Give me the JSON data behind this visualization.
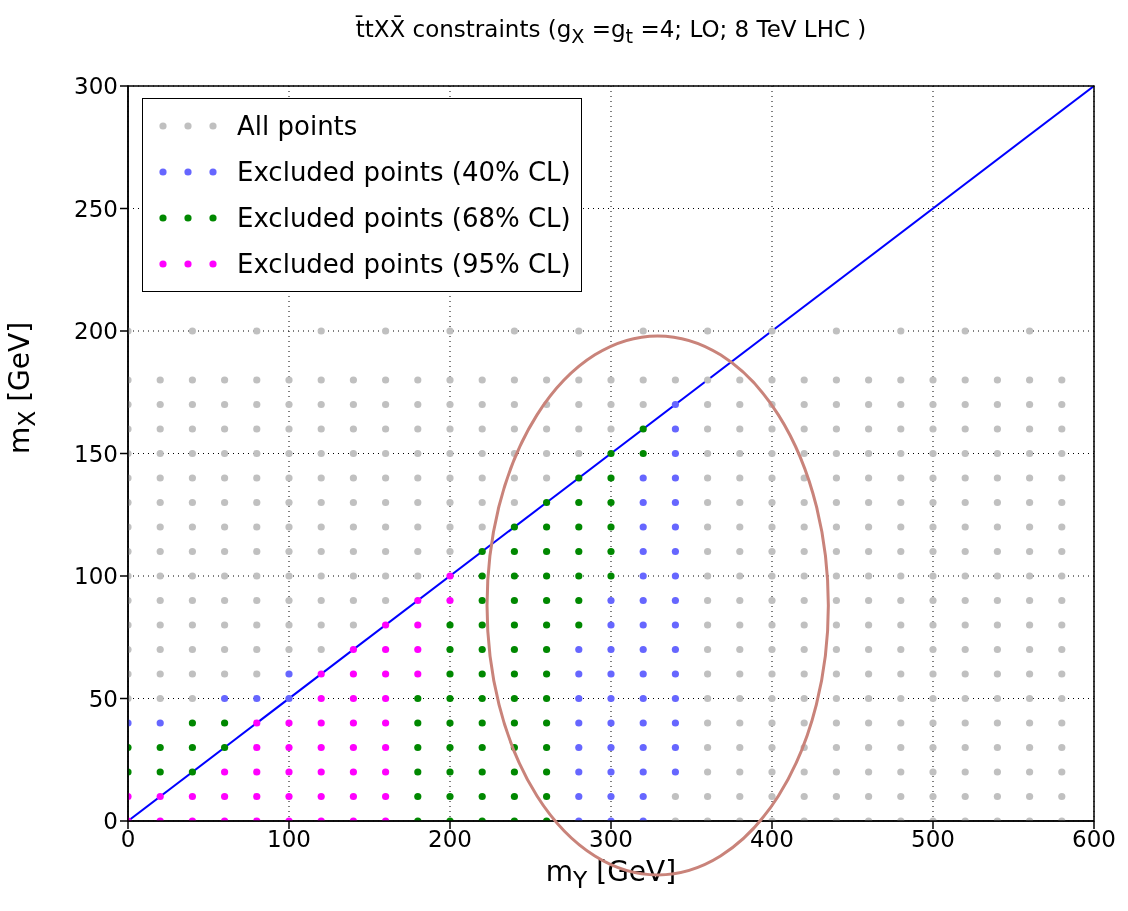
{
  "chart_data": {
    "type": "scatter",
    "title": "t̄tXX̄ constraints (g$_{X}$ =g$_{t}$ =4; LO; 8 TeV LHC )",
    "xlabel": "m$_{Y}$ [GeV]",
    "ylabel": "m$_{X}$ [GeV]",
    "xlim": [
      0,
      600
    ],
    "xticks": [
      0,
      100,
      200,
      300,
      400,
      500,
      600
    ],
    "ylim": [
      0,
      300
    ],
    "yticks": [
      0,
      50,
      100,
      150,
      200,
      250,
      300
    ],
    "grid": true,
    "legend": "top left",
    "marker": "circle",
    "series": [
      {
        "name": "All points",
        "color": "#c0c0c0",
        "x": [
          340,
          360,
          380,
          400,
          420,
          440,
          460,
          480,
          500,
          520,
          540,
          560,
          580,
          340,
          360,
          380,
          400,
          420,
          440,
          460,
          480,
          500,
          520,
          540,
          560,
          580,
          360,
          380,
          400,
          420,
          440,
          460,
          480,
          500,
          520,
          540,
          560,
          580,
          360,
          380,
          400,
          420,
          440,
          460,
          480,
          500,
          520,
          540,
          560,
          580,
          360,
          380,
          400,
          420,
          440,
          460,
          480,
          500,
          520,
          540,
          560,
          580,
          0,
          20,
          40,
          360,
          380,
          400,
          420,
          440,
          460,
          480,
          500,
          520,
          540,
          560,
          580,
          0,
          20,
          40,
          60,
          80,
          360,
          380,
          400,
          420,
          440,
          460,
          480,
          500,
          520,
          540,
          560,
          580,
          0,
          20,
          40,
          60,
          80,
          100,
          120,
          360,
          380,
          400,
          420,
          440,
          460,
          480,
          500,
          520,
          540,
          560,
          580,
          0,
          20,
          40,
          60,
          80,
          100,
          120,
          140,
          360,
          380,
          400,
          420,
          440,
          460,
          480,
          500,
          520,
          540,
          560,
          580,
          0,
          20,
          40,
          60,
          80,
          100,
          120,
          140,
          160,
          360,
          380,
          400,
          420,
          440,
          460,
          480,
          500,
          520,
          540,
          560,
          580,
          0,
          20,
          40,
          60,
          80,
          100,
          120,
          140,
          160,
          180,
          360,
          380,
          400,
          420,
          440,
          460,
          480,
          500,
          520,
          540,
          560,
          580,
          0,
          20,
          40,
          60,
          80,
          100,
          120,
          140,
          160,
          180,
          200,
          360,
          380,
          400,
          420,
          440,
          460,
          480,
          500,
          520,
          540,
          560,
          580,
          0,
          20,
          40,
          60,
          80,
          100,
          120,
          140,
          160,
          180,
          200,
          220,
          360,
          380,
          400,
          420,
          440,
          460,
          480,
          500,
          520,
          540,
          560,
          580,
          0,
          20,
          40,
          60,
          80,
          100,
          120,
          140,
          160,
          180,
          200,
          220,
          240,
          360,
          380,
          400,
          420,
          440,
          460,
          480,
          500,
          520,
          540,
          560,
          580,
          0,
          20,
          40,
          60,
          80,
          100,
          120,
          140,
          160,
          180,
          200,
          220,
          240,
          260,
          360,
          380,
          400,
          420,
          440,
          460,
          480,
          500,
          520,
          540,
          560,
          580,
          0,
          20,
          40,
          60,
          80,
          100,
          120,
          140,
          160,
          180,
          200,
          220,
          240,
          260,
          280,
          360,
          380,
          400,
          420,
          440,
          460,
          480,
          500,
          520,
          540,
          560,
          580,
          0,
          20,
          40,
          60,
          80,
          100,
          120,
          140,
          160,
          180,
          200,
          220,
          240,
          260,
          280,
          300,
          360,
          380,
          400,
          420,
          440,
          460,
          480,
          500,
          520,
          540,
          560,
          580,
          0,
          20,
          40,
          60,
          80,
          100,
          120,
          140,
          160,
          180,
          200,
          220,
          240,
          260,
          280,
          300,
          320,
          360,
          380,
          400,
          420,
          440,
          460,
          480,
          500,
          520,
          540,
          560,
          580,
          0,
          20,
          40,
          60,
          80,
          100,
          120,
          140,
          160,
          180,
          200,
          220,
          240,
          260,
          280,
          300,
          320,
          340,
          360,
          380,
          400,
          420,
          440,
          460,
          480,
          500,
          520,
          540,
          560,
          580,
          0,
          40,
          80,
          120,
          160,
          200,
          240,
          280,
          320,
          360,
          400,
          440,
          480,
          520,
          560
        ],
        "values": [
          0,
          0,
          0,
          0,
          0,
          0,
          0,
          0,
          0,
          0,
          0,
          0,
          0,
          10,
          10,
          10,
          10,
          10,
          10,
          10,
          10,
          10,
          10,
          10,
          10,
          10,
          20,
          20,
          20,
          20,
          20,
          20,
          20,
          20,
          20,
          20,
          20,
          20,
          30,
          30,
          30,
          30,
          30,
          30,
          30,
          30,
          30,
          30,
          30,
          30,
          40,
          40,
          40,
          40,
          40,
          40,
          40,
          40,
          40,
          40,
          40,
          40,
          50,
          50,
          50,
          50,
          50,
          50,
          50,
          50,
          50,
          50,
          50,
          50,
          50,
          50,
          50,
          60,
          60,
          60,
          60,
          60,
          60,
          60,
          60,
          60,
          60,
          60,
          60,
          60,
          60,
          60,
          60,
          60,
          70,
          70,
          70,
          70,
          70,
          70,
          70,
          70,
          70,
          70,
          70,
          70,
          70,
          70,
          70,
          70,
          70,
          70,
          70,
          80,
          80,
          80,
          80,
          80,
          80,
          80,
          80,
          80,
          80,
          80,
          80,
          80,
          80,
          80,
          80,
          80,
          80,
          80,
          80,
          90,
          90,
          90,
          90,
          90,
          90,
          90,
          90,
          90,
          90,
          90,
          90,
          90,
          90,
          90,
          90,
          90,
          90,
          90,
          90,
          90,
          100,
          100,
          100,
          100,
          100,
          100,
          100,
          100,
          100,
          100,
          100,
          100,
          100,
          100,
          100,
          100,
          100,
          100,
          100,
          100,
          100,
          100,
          110,
          110,
          110,
          110,
          110,
          110,
          110,
          110,
          110,
          110,
          110,
          110,
          110,
          110,
          110,
          110,
          110,
          110,
          110,
          110,
          110,
          110,
          110,
          120,
          120,
          120,
          120,
          120,
          120,
          120,
          120,
          120,
          120,
          120,
          120,
          120,
          120,
          120,
          120,
          120,
          120,
          120,
          120,
          120,
          120,
          120,
          120,
          130,
          130,
          130,
          130,
          130,
          130,
          130,
          130,
          130,
          130,
          130,
          130,
          130,
          130,
          130,
          130,
          130,
          130,
          130,
          130,
          130,
          130,
          130,
          130,
          130,
          140,
          140,
          140,
          140,
          140,
          140,
          140,
          140,
          140,
          140,
          140,
          140,
          140,
          140,
          140,
          140,
          140,
          140,
          140,
          140,
          140,
          140,
          140,
          140,
          140,
          140,
          150,
          150,
          150,
          150,
          150,
          150,
          150,
          150,
          150,
          150,
          150,
          150,
          150,
          150,
          150,
          150,
          150,
          150,
          150,
          150,
          150,
          150,
          150,
          150,
          150,
          150,
          150,
          160,
          160,
          160,
          160,
          160,
          160,
          160,
          160,
          160,
          160,
          160,
          160,
          160,
          160,
          160,
          160,
          160,
          160,
          160,
          160,
          160,
          160,
          160,
          160,
          160,
          160,
          160,
          160,
          170,
          170,
          170,
          170,
          170,
          170,
          170,
          170,
          170,
          170,
          170,
          170,
          170,
          170,
          170,
          170,
          170,
          170,
          170,
          170,
          170,
          170,
          170,
          170,
          170,
          170,
          170,
          170,
          170,
          180,
          180,
          180,
          180,
          180,
          180,
          180,
          180,
          180,
          180,
          180,
          180,
          180,
          180,
          180,
          180,
          180,
          180,
          180,
          180,
          180,
          180,
          180,
          180,
          180,
          180,
          180,
          180,
          180,
          180,
          200,
          200,
          200,
          200,
          200,
          200,
          200,
          200,
          200,
          200,
          200,
          200,
          200,
          200,
          200
        ]
      },
      {
        "name": "Excluded points (40% CL)",
        "color": "#6666ff",
        "x": [
          280,
          300,
          320,
          280,
          300,
          320,
          280,
          300,
          320,
          340,
          280,
          300,
          320,
          340,
          0,
          20,
          280,
          300,
          320,
          340,
          60,
          80,
          100,
          280,
          300,
          320,
          340,
          100,
          280,
          300,
          320,
          340,
          280,
          300,
          320,
          340,
          300,
          320,
          340,
          300,
          320,
          340,
          320,
          340,
          320,
          340,
          320,
          340,
          320,
          340,
          320,
          340,
          340,
          340,
          340
        ],
        "values": [
          0,
          0,
          0,
          10,
          10,
          10,
          20,
          20,
          20,
          20,
          30,
          30,
          30,
          30,
          40,
          40,
          40,
          40,
          40,
          40,
          50,
          50,
          50,
          50,
          50,
          50,
          50,
          60,
          60,
          60,
          60,
          60,
          70,
          70,
          70,
          70,
          80,
          80,
          80,
          90,
          90,
          90,
          100,
          100,
          110,
          110,
          120,
          120,
          130,
          130,
          140,
          140,
          150,
          160,
          170
        ]
      },
      {
        "name": "Excluded points (68% CL)",
        "color": "#008800",
        "x": [
          180,
          200,
          220,
          240,
          260,
          180,
          200,
          220,
          240,
          260,
          0,
          20,
          40,
          180,
          200,
          220,
          240,
          260,
          0,
          20,
          40,
          60,
          180,
          200,
          220,
          240,
          260,
          40,
          60,
          180,
          200,
          220,
          240,
          260,
          180,
          200,
          220,
          240,
          260,
          200,
          220,
          240,
          260,
          200,
          220,
          240,
          260,
          200,
          220,
          240,
          260,
          280,
          220,
          240,
          260,
          280,
          220,
          240,
          260,
          280,
          300,
          220,
          240,
          260,
          280,
          300,
          240,
          260,
          280,
          300,
          260,
          280,
          300,
          280,
          300,
          300,
          320,
          320
        ],
        "values": [
          0,
          0,
          0,
          0,
          0,
          10,
          10,
          10,
          10,
          10,
          20,
          20,
          20,
          20,
          20,
          20,
          20,
          20,
          30,
          30,
          30,
          30,
          30,
          30,
          30,
          30,
          30,
          40,
          40,
          40,
          40,
          40,
          40,
          40,
          50,
          50,
          50,
          50,
          50,
          60,
          60,
          60,
          60,
          70,
          70,
          70,
          70,
          80,
          80,
          80,
          80,
          80,
          90,
          90,
          90,
          90,
          100,
          100,
          100,
          100,
          100,
          110,
          110,
          110,
          110,
          110,
          120,
          120,
          120,
          120,
          130,
          130,
          130,
          140,
          140,
          150,
          150,
          160
        ]
      },
      {
        "name": "Excluded points (95% CL)",
        "color": "#ff00ff",
        "x": [
          0,
          20,
          40,
          60,
          80,
          100,
          120,
          140,
          160,
          0,
          20,
          40,
          60,
          80,
          100,
          120,
          140,
          160,
          60,
          80,
          100,
          120,
          140,
          160,
          80,
          100,
          120,
          140,
          160,
          80,
          100,
          120,
          140,
          160,
          120,
          140,
          160,
          120,
          140,
          160,
          180,
          140,
          160,
          180,
          160,
          180,
          180,
          200,
          200
        ],
        "values": [
          0,
          0,
          0,
          0,
          0,
          0,
          0,
          0,
          0,
          10,
          10,
          10,
          10,
          10,
          10,
          10,
          10,
          10,
          20,
          20,
          20,
          20,
          20,
          20,
          30,
          30,
          30,
          30,
          30,
          40,
          40,
          40,
          40,
          40,
          50,
          50,
          50,
          60,
          60,
          60,
          60,
          70,
          70,
          70,
          80,
          80,
          90,
          90,
          100
        ]
      },
      {
        "type": "line",
        "marker": "none",
        "color": "#0000ff",
        "x": [
          0,
          600
        ],
        "values": [
          0,
          300
        ]
      }
    ]
  }
}
